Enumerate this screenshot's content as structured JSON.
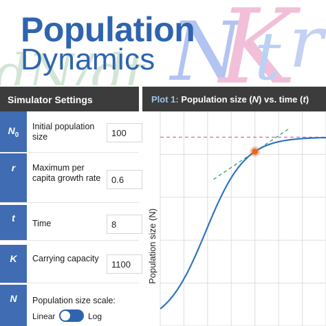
{
  "banner": {
    "title_line1": "Population",
    "title_line2": "Dynamics",
    "deco_dndt": "dN/dt",
    "deco_n": "N",
    "deco_k": "K",
    "deco_t": "t",
    "deco_r": "r"
  },
  "settings": {
    "header": "Simulator Settings",
    "params": [
      {
        "symbol": "N",
        "subscript": "0",
        "label": "Initial population size",
        "value": "100"
      },
      {
        "symbol": "r",
        "subscript": "",
        "label": "Maximum per capita growth rate",
        "value": "0.6"
      },
      {
        "symbol": "t",
        "subscript": "",
        "label": "Time",
        "value": "8"
      },
      {
        "symbol": "K",
        "subscript": "",
        "label": "Carrying capacity",
        "value": "1100"
      }
    ],
    "scale": {
      "symbol": "N",
      "label": "Population size scale:",
      "option_left": "Linear",
      "option_right": "Log",
      "selected": "Linear"
    }
  },
  "plot": {
    "title_prefix": "Plot 1:",
    "title_main": "Population size (",
    "title_n": "N",
    "title_mid": ") vs. time (",
    "title_t": "t",
    "title_end": ")",
    "ylabel": "Population size (N)",
    "colors": {
      "curve": "#2f73c4",
      "tangent": "#3aaa5c",
      "carrying_capacity": "#d15aa8",
      "marker": "#e86a1e",
      "grid": "#dddddd"
    }
  },
  "chart_data": {
    "type": "line",
    "model": "logistic",
    "N0": 100,
    "r": 0.6,
    "K": 1100,
    "t_marker": 8,
    "xlim": [
      0,
      14
    ],
    "ylim": [
      0,
      1250
    ],
    "ylabel": "Population size (N)",
    "grid": true,
    "series": [
      {
        "kind": "population-curve"
      },
      {
        "kind": "tangent-at-marker"
      },
      {
        "kind": "carrying-capacity-line"
      }
    ]
  }
}
